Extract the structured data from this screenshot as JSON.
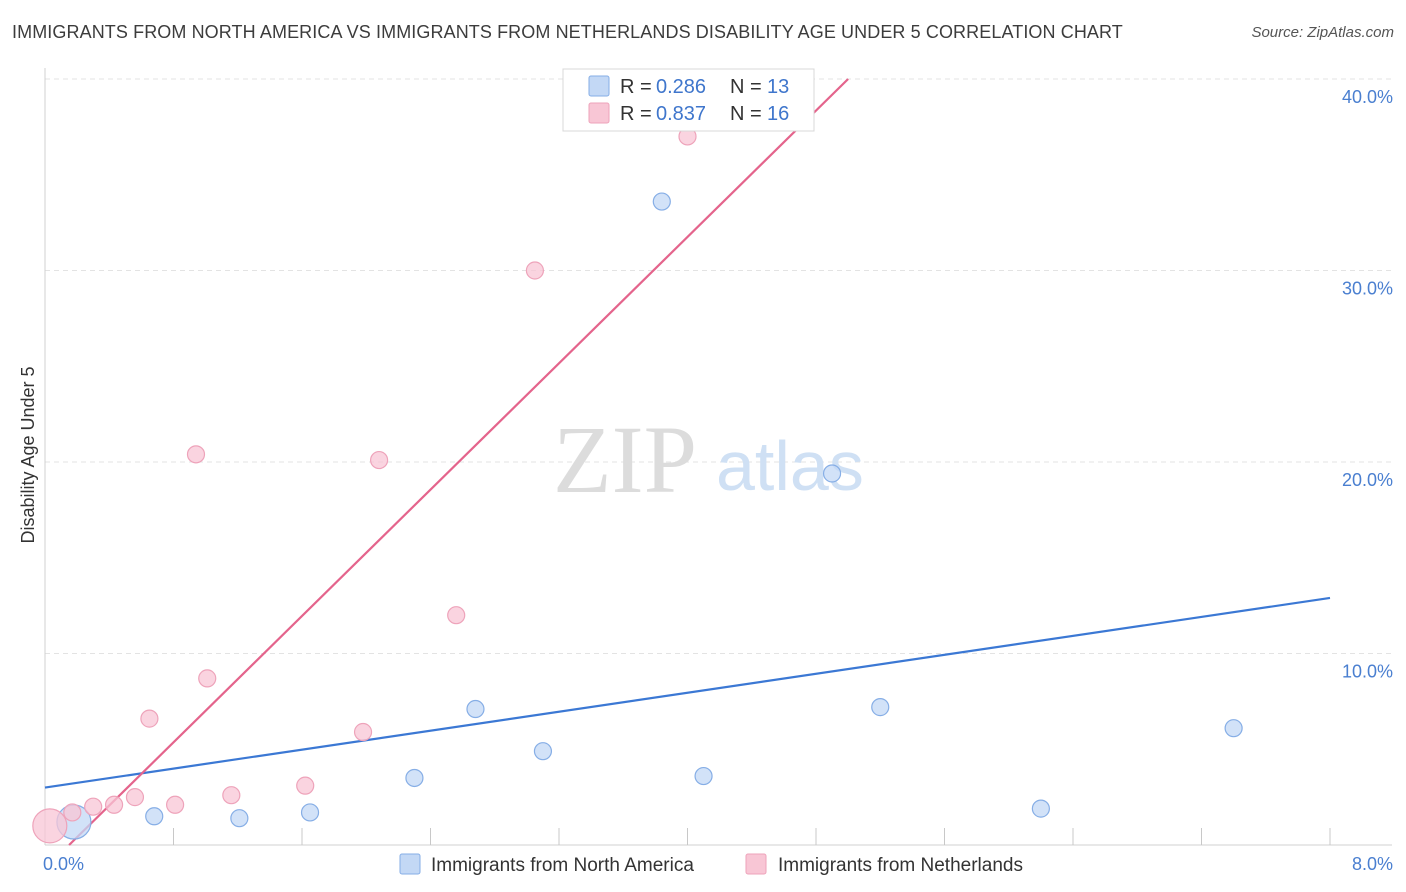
{
  "title": "IMMIGRANTS FROM NORTH AMERICA VS IMMIGRANTS FROM NETHERLANDS DISABILITY AGE UNDER 5 CORRELATION CHART",
  "source": "Source: ZipAtlas.com",
  "watermark": {
    "zip": "ZIP",
    "atlas": "atlas"
  },
  "colors": {
    "blue": "#3b78d4",
    "blue_fill": "#c3d8f5",
    "pink": "#e4648c",
    "pink_fill": "#f8c6d5",
    "tick": "#4a7fd0",
    "grid": "#e3e3e3"
  },
  "legend": {
    "r_label": "R =",
    "n_label": "N =",
    "rows": [
      {
        "r": "0.286",
        "n": "13",
        "series": "blue"
      },
      {
        "r": "0.837",
        "n": "16",
        "series": "pink"
      }
    ]
  },
  "chart_data": {
    "type": "scatter",
    "ylabel": "Disability Age Under 5",
    "xlim": [
      0,
      8
    ],
    "ylim": [
      0,
      40
    ],
    "x_tick_labels": [
      "0.0%",
      "8.0%"
    ],
    "y_ticks": [
      10,
      20,
      30,
      40
    ],
    "y_tick_labels": [
      "10.0%",
      "20.0%",
      "30.0%",
      "40.0%"
    ],
    "grid": true,
    "legend_position": "top-center",
    "series": [
      {
        "name": "Immigrants from North America",
        "color": "blue",
        "trend": {
          "x": [
            0,
            8
          ],
          "y": [
            3.0,
            12.9
          ]
        },
        "points": [
          {
            "x": 0.18,
            "y": 1.2,
            "big": true
          },
          {
            "x": 0.68,
            "y": 1.5
          },
          {
            "x": 1.21,
            "y": 1.4
          },
          {
            "x": 1.65,
            "y": 1.7
          },
          {
            "x": 2.3,
            "y": 3.5
          },
          {
            "x": 2.68,
            "y": 7.1
          },
          {
            "x": 3.1,
            "y": 4.9
          },
          {
            "x": 3.84,
            "y": 33.6
          },
          {
            "x": 4.1,
            "y": 3.6
          },
          {
            "x": 4.9,
            "y": 19.4
          },
          {
            "x": 5.2,
            "y": 7.2
          },
          {
            "x": 6.2,
            "y": 1.9
          },
          {
            "x": 7.4,
            "y": 6.1
          }
        ]
      },
      {
        "name": "Immigrants from Netherlands",
        "color": "pink",
        "trend": {
          "x": [
            0.15,
            5.0
          ],
          "y": [
            0.0,
            40.0
          ]
        },
        "points": [
          {
            "x": 0.03,
            "y": 1.0,
            "big": true
          },
          {
            "x": 0.17,
            "y": 1.7
          },
          {
            "x": 0.3,
            "y": 2.0
          },
          {
            "x": 0.43,
            "y": 2.1
          },
          {
            "x": 0.56,
            "y": 2.5
          },
          {
            "x": 0.65,
            "y": 6.6
          },
          {
            "x": 0.81,
            "y": 2.1
          },
          {
            "x": 0.94,
            "y": 20.4
          },
          {
            "x": 1.01,
            "y": 8.7
          },
          {
            "x": 1.16,
            "y": 2.6
          },
          {
            "x": 1.62,
            "y": 3.1
          },
          {
            "x": 1.98,
            "y": 5.9
          },
          {
            "x": 2.08,
            "y": 20.1
          },
          {
            "x": 2.56,
            "y": 12.0
          },
          {
            "x": 3.05,
            "y": 30.0
          },
          {
            "x": 4.0,
            "y": 37.0
          }
        ]
      }
    ]
  }
}
